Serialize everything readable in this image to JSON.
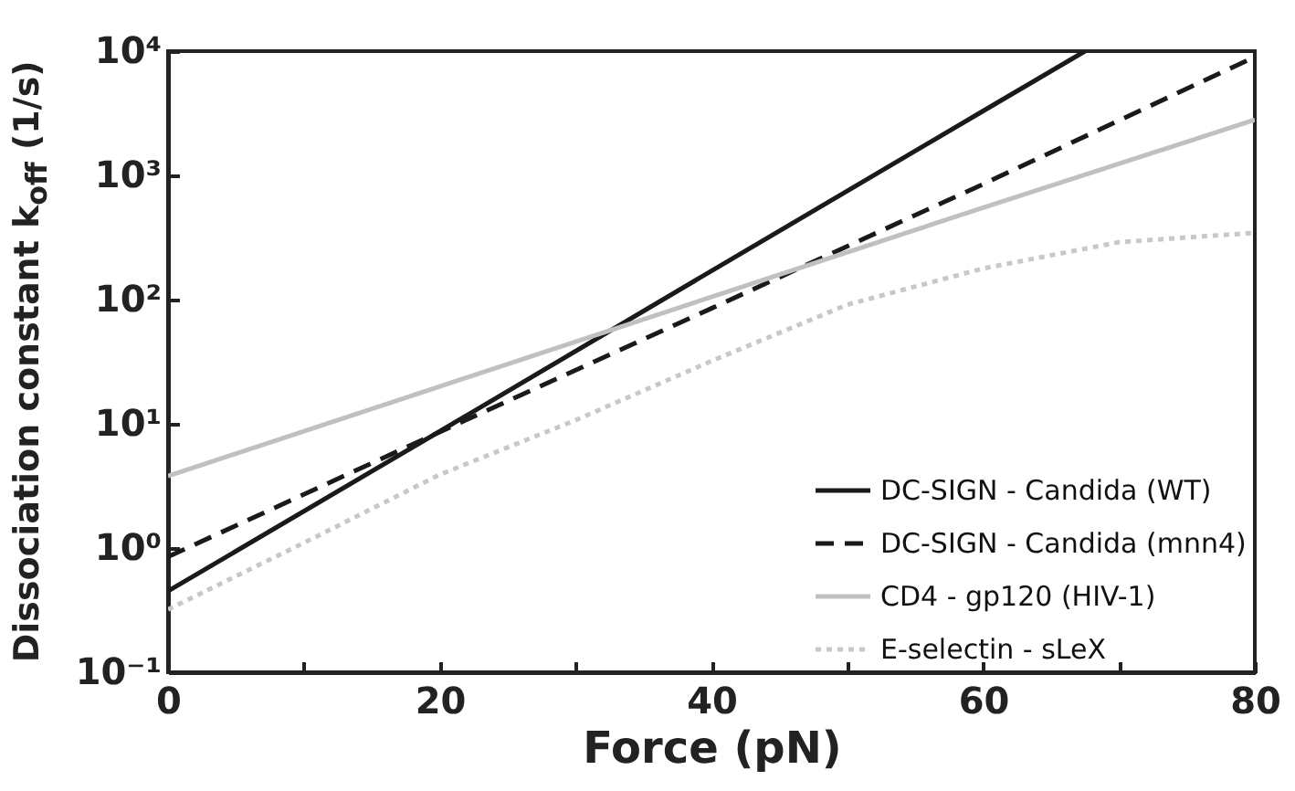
{
  "chart_data": {
    "type": "line",
    "xlabel": "Force (pN)",
    "ylabel": "Dissociation constant k$_{off}$ (1/s)",
    "x": [
      0,
      10,
      20,
      30,
      40,
      50,
      60,
      70,
      80
    ],
    "series": [
      {
        "name": "DC-SIGN - Candida (WT)",
        "color": "#1a1a1a",
        "line_style": "solid",
        "x": [
          0,
          20,
          40,
          60,
          67.5
        ],
        "values": [
          0.45,
          8.7,
          170,
          3300,
          10000
        ]
      },
      {
        "name": "DC-SIGN - Candida (mnn4)",
        "color": "#1a1a1a",
        "line_style": "dashed",
        "x": [
          0,
          20,
          40,
          60,
          80
        ],
        "values": [
          0.85,
          8.6,
          85,
          850,
          9000
        ]
      },
      {
        "name": "CD4 - gp120 (HIV-1)",
        "color": "#c0c0c0",
        "line_style": "solid",
        "x": [
          0,
          20,
          40,
          60,
          80
        ],
        "values": [
          3.8,
          20,
          105,
          550,
          2800
        ]
      },
      {
        "name": "E-selectin - sLeX",
        "color": "#c8c8c8",
        "line_style": "dotted",
        "values": [
          0.32,
          1.1,
          3.9,
          10.7,
          32,
          91,
          178,
          290,
          345
        ]
      }
    ],
    "log": "y",
    "xlim": [
      0,
      80
    ],
    "xticks": [
      0,
      {
        "value": 10,
        "label": null
      },
      20,
      {
        "value": 30,
        "label": null
      },
      40,
      {
        "value": 50,
        "label": null
      },
      60,
      {
        "value": 70,
        "label": null
      },
      80
    ],
    "ylim": [
      0.1,
      10000
    ],
    "yticks": [
      {
        "value": 0.1,
        "label": "10⁻¹"
      },
      {
        "value": 1,
        "label": "10⁰"
      },
      {
        "value": 10,
        "label": "10¹"
      },
      {
        "value": 100,
        "label": "10²"
      },
      {
        "value": 1000,
        "label": "10³"
      },
      {
        "value": 10000,
        "label": "10⁴"
      }
    ],
    "legend": "bottom right",
    "grid": false
  }
}
